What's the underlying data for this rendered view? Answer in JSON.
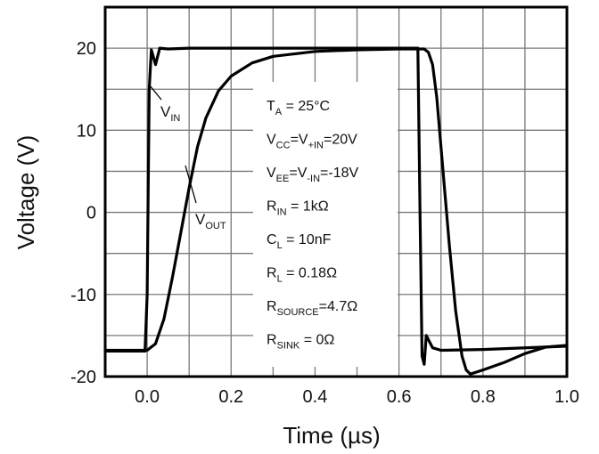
{
  "chart_data": {
    "type": "line",
    "xlabel": "Time (µs)",
    "ylabel": "Voltage (V)",
    "xlim": [
      -0.1,
      1.0
    ],
    "ylim": [
      -20,
      25
    ],
    "x_ticks": [
      "0.0",
      "0.2",
      "0.4",
      "0.6",
      "0.8",
      "1.0"
    ],
    "y_ticks": [
      "20",
      "10",
      "0",
      "-10",
      "-20"
    ],
    "grid": true,
    "series": [
      {
        "name": "V_IN",
        "x": [
          -0.1,
          -0.005,
          0.0,
          0.005,
          0.01,
          0.02,
          0.03,
          0.05,
          0.1,
          0.3,
          0.5,
          0.64,
          0.645,
          0.65,
          0.655,
          0.66,
          0.665,
          0.68,
          0.7,
          0.8,
          1.0
        ],
        "y": [
          -16.9,
          -16.9,
          -10,
          15,
          19.8,
          18.0,
          20.0,
          19.9,
          20.0,
          20.0,
          20.0,
          20.0,
          20.0,
          0,
          -17.5,
          -18.5,
          -15.0,
          -16.5,
          -16.8,
          -16.7,
          -16.3
        ]
      },
      {
        "name": "V_OUT",
        "x": [
          -0.1,
          0.0,
          0.02,
          0.04,
          0.06,
          0.08,
          0.1,
          0.12,
          0.14,
          0.17,
          0.2,
          0.25,
          0.3,
          0.4,
          0.5,
          0.6,
          0.655,
          0.66,
          0.67,
          0.68,
          0.69,
          0.7,
          0.71,
          0.72,
          0.735,
          0.75,
          0.76,
          0.77,
          0.8,
          0.85,
          0.9,
          0.95,
          1.0
        ],
        "y": [
          -16.8,
          -16.8,
          -16.0,
          -13.0,
          -8.0,
          -2.5,
          3.0,
          8.0,
          11.5,
          14.8,
          16.6,
          18.2,
          19.0,
          19.6,
          19.8,
          19.9,
          19.9,
          19.9,
          19.5,
          18.0,
          14.0,
          8.0,
          2.0,
          -4.0,
          -12.0,
          -17.5,
          -19.2,
          -19.7,
          -19.2,
          -18.3,
          -17.2,
          -16.4,
          -16.2
        ]
      }
    ],
    "labels": {
      "vin": {
        "main": "V",
        "sub": "IN"
      },
      "vout": {
        "main": "V",
        "sub": "OUT"
      }
    },
    "annotations": [
      {
        "parts": [
          {
            "t": "T"
          },
          {
            "t": "A",
            "sub": true
          },
          {
            "t": " = 25°C"
          }
        ]
      },
      {
        "parts": [
          {
            "t": "V"
          },
          {
            "t": "CC",
            "sub": true
          },
          {
            "t": "=V"
          },
          {
            "t": "+IN",
            "sub": true
          },
          {
            "t": "=20V"
          }
        ]
      },
      {
        "parts": [
          {
            "t": "V"
          },
          {
            "t": "EE",
            "sub": true
          },
          {
            "t": "=V"
          },
          {
            "t": "-IN",
            "sub": true
          },
          {
            "t": "=-18V"
          }
        ]
      },
      {
        "parts": [
          {
            "t": "R"
          },
          {
            "t": "IN",
            "sub": true
          },
          {
            "t": " = 1kΩ"
          }
        ]
      },
      {
        "parts": [
          {
            "t": "C"
          },
          {
            "t": "L",
            "sub": true
          },
          {
            "t": " = 10nF"
          }
        ]
      },
      {
        "parts": [
          {
            "t": "R"
          },
          {
            "t": "L",
            "sub": true
          },
          {
            "t": " = 0.18Ω"
          }
        ]
      },
      {
        "parts": [
          {
            "t": "R"
          },
          {
            "t": "SOURCE",
            "sub": true
          },
          {
            "t": "=4.7Ω"
          }
        ]
      },
      {
        "parts": [
          {
            "t": "R"
          },
          {
            "t": "SINK",
            "sub": true
          },
          {
            "t": " = 0Ω"
          }
        ]
      }
    ]
  }
}
